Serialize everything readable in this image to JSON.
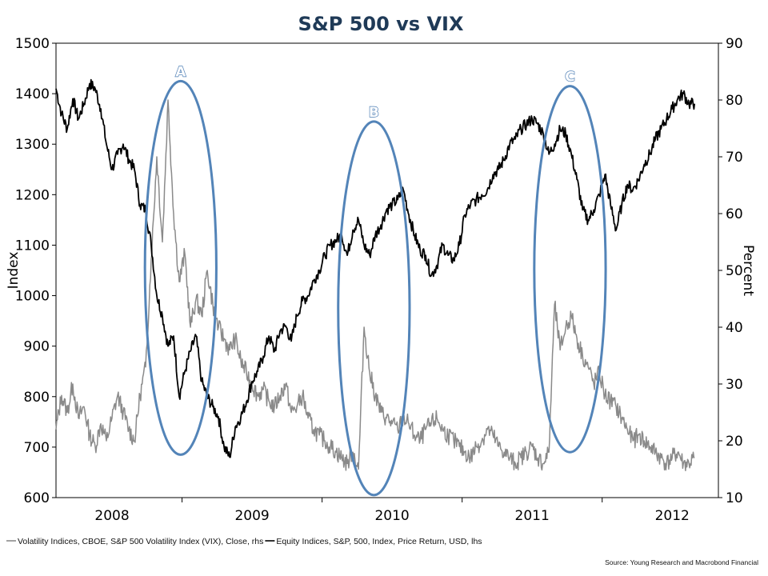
{
  "chart_data": {
    "type": "line",
    "title": "S&P 500 vs VIX",
    "ylabel_left": "Index",
    "ylabel_right": "Percent",
    "ylim_left": [
      600,
      1500
    ],
    "yticks_left": [
      "600",
      "700",
      "800",
      "900",
      "1000",
      "1100",
      "1200",
      "1300",
      "1400",
      "1500"
    ],
    "ylim_right": [
      10,
      90
    ],
    "yticks_right": [
      "10",
      "20",
      "30",
      "40",
      "50",
      "60",
      "70",
      "80",
      "90"
    ],
    "xlim": [
      2007.6,
      2012.33
    ],
    "xticks": [
      {
        "label": "2008",
        "x": 2008.0
      },
      {
        "label": "2009",
        "x": 2009.0
      },
      {
        "label": "2010",
        "x": 2010.0
      },
      {
        "label": "2011",
        "x": 2011.0
      },
      {
        "label": "2012",
        "x": 2012.0
      }
    ],
    "series": [
      {
        "name": "Equity Indices, S&P, 500, Index, Price Return, USD, lhs",
        "axis": "left",
        "color": "#000000",
        "x": [
          2007.6,
          2007.64,
          2007.68,
          2007.72,
          2007.76,
          2007.8,
          2007.84,
          2007.88,
          2007.92,
          2007.96,
          2008.0,
          2008.04,
          2008.08,
          2008.12,
          2008.16,
          2008.2,
          2008.24,
          2008.28,
          2008.32,
          2008.36,
          2008.4,
          2008.44,
          2008.48,
          2008.52,
          2008.56,
          2008.6,
          2008.64,
          2008.68,
          2008.72,
          2008.76,
          2008.8,
          2008.84,
          2008.88,
          2008.92,
          2008.96,
          2009.0,
          2009.04,
          2009.08,
          2009.12,
          2009.16,
          2009.2,
          2009.24,
          2009.28,
          2009.32,
          2009.36,
          2009.4,
          2009.44,
          2009.48,
          2009.52,
          2009.56,
          2009.6,
          2009.64,
          2009.68,
          2009.72,
          2009.76,
          2009.8,
          2009.84,
          2009.88,
          2009.92,
          2009.96,
          2010.0,
          2010.04,
          2010.08,
          2010.12,
          2010.16,
          2010.2,
          2010.24,
          2010.28,
          2010.32,
          2010.36,
          2010.4,
          2010.44,
          2010.48,
          2010.52,
          2010.56,
          2010.6,
          2010.64,
          2010.68,
          2010.72,
          2010.76,
          2010.8,
          2010.84,
          2010.88,
          2010.92,
          2010.96,
          2011.0,
          2011.04,
          2011.08,
          2011.12,
          2011.16,
          2011.2,
          2011.24,
          2011.28,
          2011.32,
          2011.36,
          2011.4,
          2011.44,
          2011.48,
          2011.52,
          2011.56,
          2011.6,
          2011.64,
          2011.68,
          2011.72,
          2011.76,
          2011.8,
          2011.84,
          2011.88,
          2011.92,
          2011.96,
          2012.0,
          2012.04,
          2012.08,
          2012.12,
          2012.16
        ],
        "values": [
          1410,
          1360,
          1330,
          1390,
          1350,
          1380,
          1420,
          1410,
          1370,
          1300,
          1250,
          1280,
          1300,
          1270,
          1250,
          1180,
          1170,
          1100,
          1000,
          960,
          900,
          920,
          800,
          850,
          890,
          920,
          830,
          800,
          780,
          760,
          700,
          680,
          740,
          760,
          790,
          830,
          850,
          880,
          920,
          890,
          930,
          940,
          910,
          960,
          990,
          1000,
          1030,
          1050,
          1080,
          1100,
          1110,
          1120,
          1080,
          1130,
          1150,
          1100,
          1080,
          1120,
          1140,
          1170,
          1180,
          1190,
          1210,
          1160,
          1120,
          1090,
          1080,
          1040,
          1060,
          1100,
          1080,
          1070,
          1100,
          1160,
          1180,
          1190,
          1200,
          1210,
          1240,
          1250,
          1270,
          1300,
          1310,
          1330,
          1340,
          1350,
          1340,
          1320,
          1280,
          1300,
          1330,
          1320,
          1280,
          1230,
          1170,
          1150,
          1170,
          1200,
          1240,
          1180,
          1130,
          1180,
          1220,
          1210,
          1230,
          1260,
          1280,
          1310,
          1330,
          1350,
          1370,
          1390,
          1400,
          1380,
          1380
        ]
      },
      {
        "name": "Volatility Indices, CBOE, S&P 500 Volatility Index (VIX), Close, rhs",
        "axis": "right",
        "color": "#8a8a8a",
        "x": [
          2007.6,
          2007.64,
          2007.68,
          2007.72,
          2007.76,
          2007.8,
          2007.84,
          2007.88,
          2007.92,
          2007.96,
          2008.0,
          2008.04,
          2008.08,
          2008.12,
          2008.16,
          2008.2,
          2008.24,
          2008.28,
          2008.32,
          2008.36,
          2008.4,
          2008.44,
          2008.48,
          2008.52,
          2008.56,
          2008.6,
          2008.64,
          2008.68,
          2008.72,
          2008.76,
          2008.8,
          2008.84,
          2008.88,
          2008.92,
          2008.96,
          2009.0,
          2009.04,
          2009.08,
          2009.12,
          2009.16,
          2009.2,
          2009.24,
          2009.28,
          2009.32,
          2009.36,
          2009.4,
          2009.44,
          2009.48,
          2009.52,
          2009.56,
          2009.6,
          2009.64,
          2009.68,
          2009.72,
          2009.76,
          2009.8,
          2009.84,
          2009.88,
          2009.92,
          2009.96,
          2010.0,
          2010.04,
          2010.08,
          2010.12,
          2010.16,
          2010.2,
          2010.24,
          2010.28,
          2010.32,
          2010.36,
          2010.4,
          2010.44,
          2010.48,
          2010.52,
          2010.56,
          2010.6,
          2010.64,
          2010.68,
          2010.72,
          2010.76,
          2010.8,
          2010.84,
          2010.88,
          2010.92,
          2010.96,
          2011.0,
          2011.04,
          2011.08,
          2011.12,
          2011.16,
          2011.2,
          2011.24,
          2011.28,
          2011.32,
          2011.36,
          2011.4,
          2011.44,
          2011.48,
          2011.52,
          2011.56,
          2011.6,
          2011.64,
          2011.68,
          2011.72,
          2011.76,
          2011.8,
          2011.84,
          2011.88,
          2011.92,
          2011.96,
          2012.0,
          2012.04,
          2012.08,
          2012.12,
          2012.16
        ],
        "values": [
          22,
          28,
          25,
          30,
          24,
          26,
          21,
          19,
          23,
          20,
          24,
          28,
          25,
          22,
          20,
          28,
          33,
          52,
          70,
          55,
          80,
          60,
          48,
          53,
          40,
          45,
          42,
          50,
          44,
          40,
          38,
          36,
          38,
          34,
          32,
          30,
          28,
          29,
          27,
          26,
          28,
          30,
          25,
          26,
          28,
          24,
          22,
          21,
          20,
          19,
          18,
          17,
          16,
          18,
          15,
          40,
          32,
          28,
          25,
          24,
          23,
          22,
          24,
          23,
          21,
          20,
          22,
          23,
          24,
          22,
          21,
          20,
          19,
          18,
          17,
          19,
          20,
          22,
          21,
          19,
          18,
          17,
          16,
          17,
          18,
          19,
          17,
          16,
          18,
          44,
          36,
          40,
          42,
          38,
          35,
          33,
          30,
          32,
          28,
          27,
          26,
          24,
          22,
          20,
          21,
          20,
          19,
          18,
          17,
          16,
          17,
          18,
          16,
          16,
          17
        ]
      }
    ],
    "annotations": [
      "A",
      "B",
      "C"
    ],
    "legend_position": "bottom",
    "grid": false
  },
  "source": "Source: Young Research and Macrobond Financial"
}
